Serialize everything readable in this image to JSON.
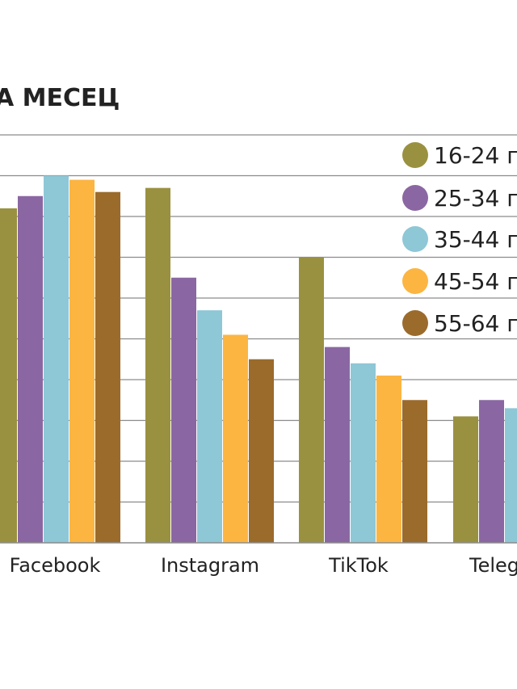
{
  "chart_data": {
    "type": "bar",
    "title": "А МЕСЕЦ",
    "categories": [
      "Facebook",
      "Instagram",
      "TikTok",
      "Teleg"
    ],
    "series": [
      {
        "name": "16-24 г",
        "color": "#9a9140",
        "values": [
          82,
          87,
          70,
          31
        ]
      },
      {
        "name": "25-34 г",
        "color": "#8a67a2",
        "values": [
          85,
          65,
          48,
          35
        ]
      },
      {
        "name": "35-44 г",
        "color": "#8ec7d6",
        "values": [
          90,
          57,
          44,
          33
        ]
      },
      {
        "name": "45-54 г",
        "color": "#fcb541",
        "values": [
          89,
          51,
          41,
          null
        ]
      },
      {
        "name": "55-64 г",
        "color": "#9b6b2c",
        "values": [
          86,
          45,
          35,
          null
        ]
      }
    ],
    "ylim": [
      0,
      100
    ],
    "grid": true,
    "legend_position": "top-right"
  }
}
